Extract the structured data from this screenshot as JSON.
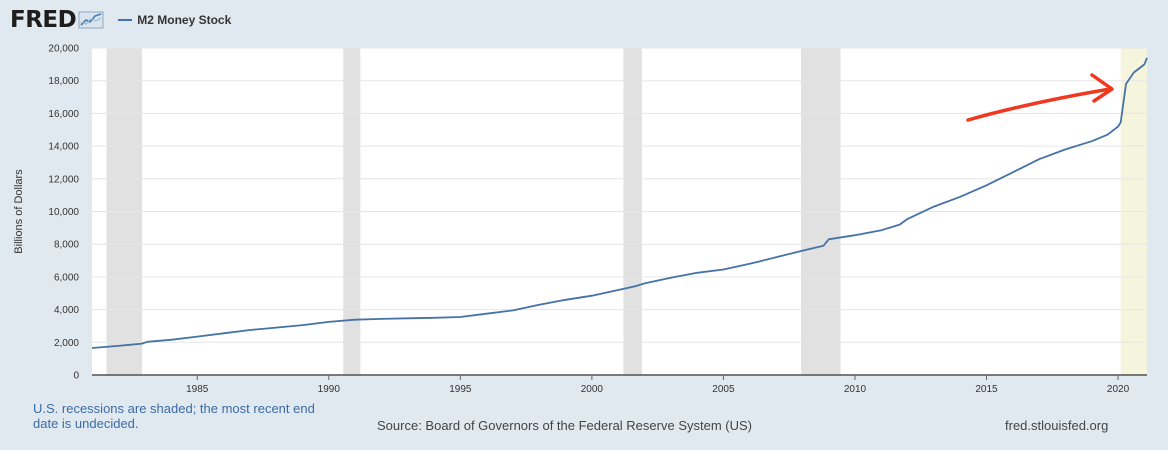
{
  "header": {
    "logo_text": "FRED",
    "legend_label": "M2 Money Stock"
  },
  "colors": {
    "series": "#4572a7",
    "recession": "#e1e1e1",
    "undecided_recession": "#f5f4dc",
    "arrow": "#f2371f",
    "background": "#e1e9f0",
    "plot": "#ffffff"
  },
  "icons": [
    "fred-graph-icon",
    "annotation-arrow-icon"
  ],
  "footer": {
    "note": "U.S. recessions are shaded; the most recent end date is undecided.",
    "source": "Source: Board of Governors of the Federal Reserve System (US)",
    "site": "fred.stlouisfed.org"
  },
  "chart_data": {
    "type": "line",
    "title": "M2 Money Stock",
    "xlabel": "",
    "ylabel": "Billions of Dollars",
    "xlim": [
      1981.0,
      2021.1
    ],
    "ylim": [
      0,
      20000
    ],
    "x_ticks": [
      1985,
      1990,
      1995,
      2000,
      2005,
      2010,
      2015,
      2020
    ],
    "x_tick_labels": [
      "1985",
      "1990",
      "1995",
      "2000",
      "2005",
      "2010",
      "2015",
      "2020"
    ],
    "y_ticks": [
      0,
      2000,
      4000,
      6000,
      8000,
      10000,
      12000,
      14000,
      16000,
      18000,
      20000
    ],
    "y_tick_labels": [
      "0",
      "2,000",
      "4,000",
      "6,000",
      "8,000",
      "10,000",
      "12,000",
      "14,000",
      "16,000",
      "18,000",
      "20,000"
    ],
    "grid": true,
    "legend": "top-left",
    "recessions": [
      [
        1981.55,
        1982.9
      ],
      [
        1990.55,
        1991.2
      ],
      [
        2001.2,
        2001.9
      ],
      [
        2007.95,
        2009.45
      ]
    ],
    "undecided_recession": [
      2020.1,
      2021.1
    ],
    "annotation": "red arrow pointing at 2020 surge",
    "series": [
      {
        "name": "M2 Money Stock",
        "x": [
          1981.0,
          1982.0,
          1982.9,
          1983.1,
          1984.0,
          1985.0,
          1986.0,
          1987.0,
          1988.0,
          1989.0,
          1990.0,
          1991.0,
          1992.0,
          1993.0,
          1994.0,
          1995.0,
          1996.0,
          1997.0,
          1998.0,
          1999.0,
          2000.0,
          2001.0,
          2001.7,
          2002.0,
          2003.0,
          2004.0,
          2005.0,
          2006.0,
          2007.0,
          2008.0,
          2008.8,
          2009.0,
          2010.0,
          2011.0,
          2011.7,
          2012.0,
          2013.0,
          2014.0,
          2015.0,
          2016.0,
          2017.0,
          2018.0,
          2019.0,
          2019.6,
          2020.0,
          2020.1,
          2020.3,
          2020.6,
          2021.0,
          2021.1
        ],
        "y": [
          1650,
          1780,
          1920,
          2030,
          2150,
          2350,
          2550,
          2750,
          2900,
          3050,
          3250,
          3380,
          3430,
          3470,
          3500,
          3550,
          3750,
          3950,
          4300,
          4600,
          4850,
          5200,
          5450,
          5600,
          5950,
          6250,
          6450,
          6800,
          7200,
          7600,
          7900,
          8300,
          8550,
          8850,
          9200,
          9550,
          10300,
          10900,
          11600,
          12400,
          13200,
          13800,
          14300,
          14700,
          15200,
          15450,
          17800,
          18500,
          19000,
          19400
        ]
      }
    ]
  }
}
